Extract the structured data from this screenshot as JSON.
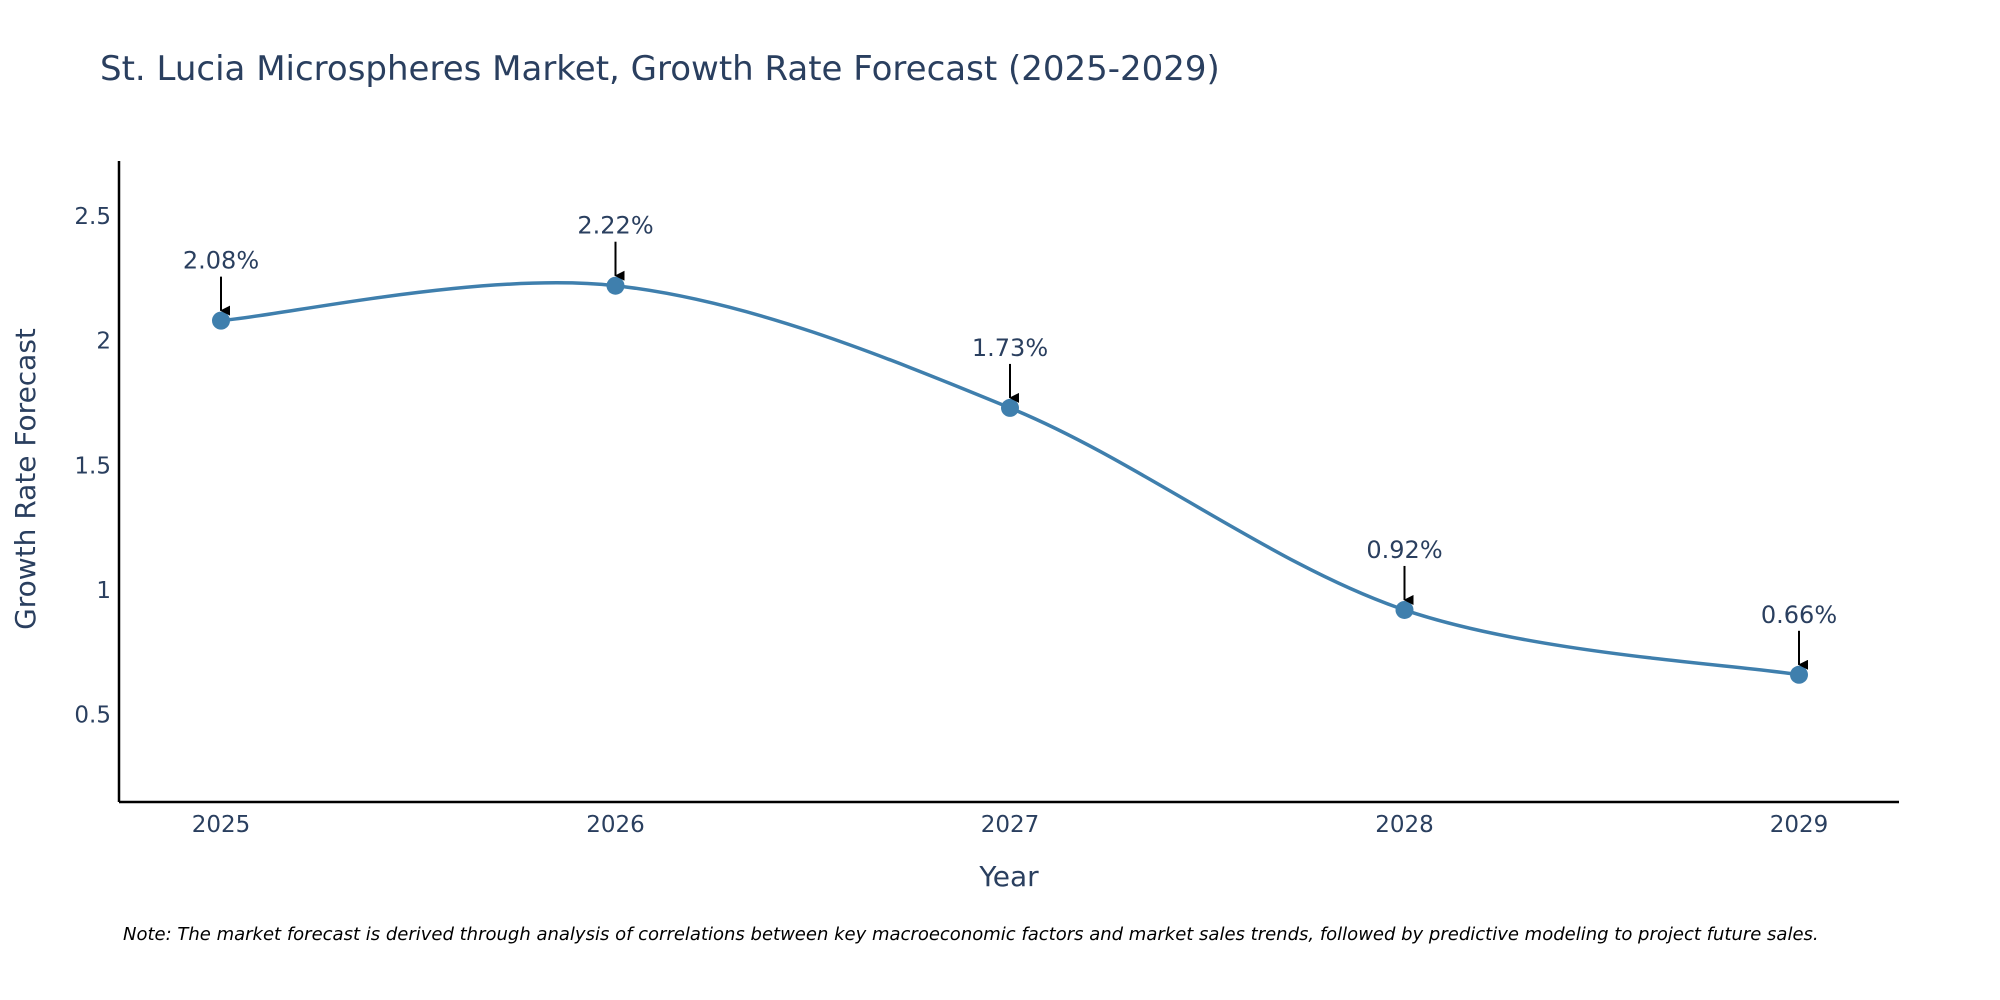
{
  "colors": {
    "line": "#3f7fad",
    "marker": "#3f7fad",
    "axis": "#000000",
    "text": "#2a3f5f",
    "arrow": "#000000",
    "background": "#ffffff"
  },
  "chart_data": {
    "type": "line",
    "title": "St. Lucia Microspheres Market, Growth Rate Forecast (2025-2029)",
    "xlabel": "Year",
    "ylabel": "Growth Rate Forecast",
    "x": [
      "2025",
      "2026",
      "2027",
      "2028",
      "2029"
    ],
    "values": [
      2.08,
      2.22,
      1.73,
      0.92,
      0.66
    ],
    "data_labels": [
      "2.08%",
      "2.22%",
      "1.73%",
      "0.92%",
      "0.66%"
    ],
    "yticks": [
      0.5,
      1,
      1.5,
      2,
      2.5
    ],
    "ytick_labels": [
      "0.5",
      "1",
      "1.5",
      "2",
      "2.5"
    ],
    "ylim": [
      0.15,
      2.72
    ],
    "grid": false,
    "line_shape": "spline",
    "note": "Note: The market forecast is derived through analysis of correlations between key macroeconomic factors and market sales trends, followed by predictive modeling to project future sales."
  }
}
